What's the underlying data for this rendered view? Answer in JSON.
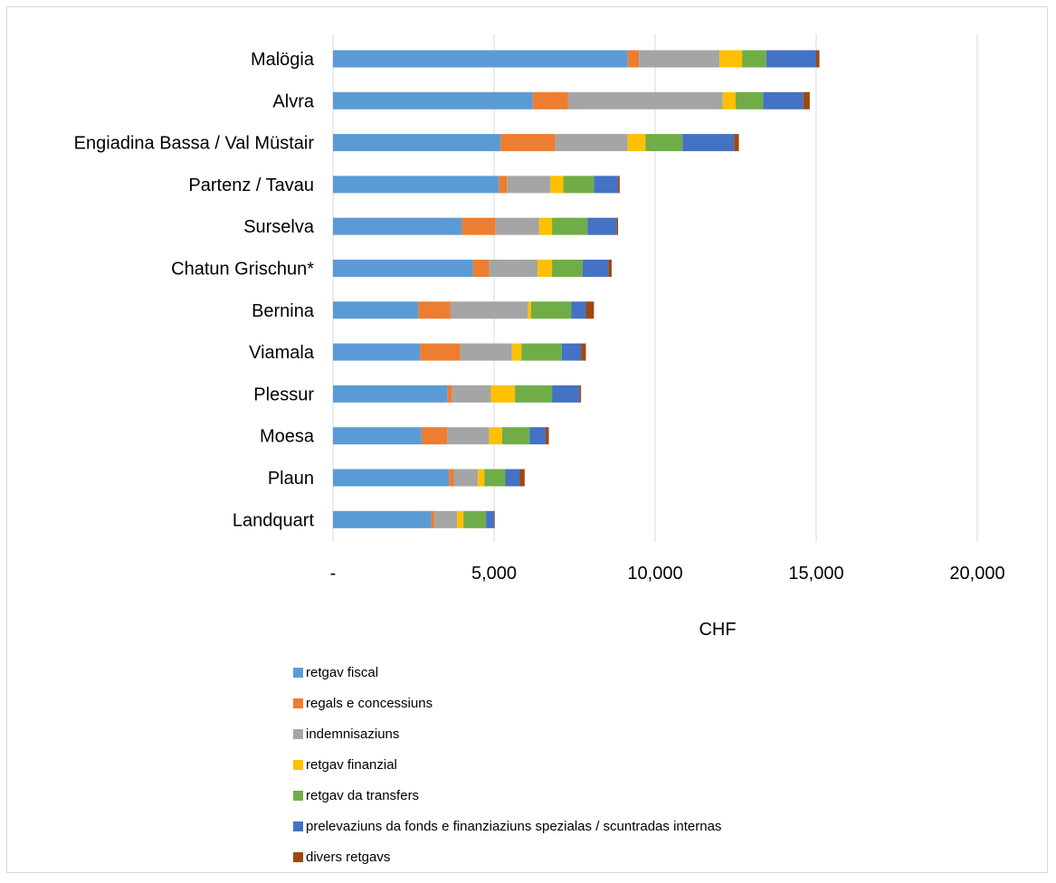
{
  "chart_data": {
    "type": "bar",
    "orientation": "horizontal",
    "stacked": true,
    "categories": [
      "Malögia",
      "Alvra",
      "Engiadina Bassa / Val Müstair",
      "Partenz / Tavau",
      "Surselva",
      "Chatun Grischun*",
      "Bernina",
      "Viamala",
      "Plessur",
      "Moesa",
      "Plaun",
      "Landquart"
    ],
    "series": [
      {
        "name": "retgav  fiscal",
        "color": "#5B9BD5",
        "values": [
          9150,
          6200,
          5200,
          5150,
          4000,
          4350,
          2650,
          2700,
          3550,
          2750,
          3600,
          3050
        ]
      },
      {
        "name": "regals e concessiuns",
        "color": "#ED7D31",
        "values": [
          350,
          1100,
          1700,
          250,
          1050,
          500,
          1000,
          1250,
          150,
          800,
          150,
          100
        ]
      },
      {
        "name": "indemnisaziuns",
        "color": "#A5A5A5",
        "values": [
          2500,
          4800,
          2250,
          1350,
          1350,
          1500,
          2400,
          1600,
          1200,
          1300,
          750,
          700
        ]
      },
      {
        "name": "retgav finanzial",
        "color": "#FFC000",
        "values": [
          700,
          400,
          550,
          400,
          400,
          450,
          100,
          300,
          750,
          400,
          200,
          200
        ]
      },
      {
        "name": "retgav da transfers",
        "color": "#70AD47",
        "values": [
          750,
          850,
          1150,
          950,
          1100,
          950,
          1250,
          1250,
          1150,
          850,
          650,
          700
        ]
      },
      {
        "name": "prelevaziuns da fonds e finanziaziuns spezialas / scuntradas internas",
        "color": "#4472C4",
        "values": [
          1550,
          1250,
          1600,
          750,
          900,
          800,
          450,
          600,
          850,
          500,
          450,
          250
        ]
      },
      {
        "name": "divers retgavs",
        "color": "#9E480E",
        "values": [
          100,
          200,
          150,
          50,
          50,
          100,
          250,
          150,
          50,
          100,
          150,
          20
        ]
      }
    ],
    "x_ticks": [
      "-",
      "5,000",
      "10,000",
      "15,000",
      "20,000"
    ],
    "xlim": [
      0,
      20000
    ],
    "xlabel": "CHF",
    "ylabel": "",
    "title": "",
    "grid": "vertical",
    "legend_position": "bottom"
  }
}
